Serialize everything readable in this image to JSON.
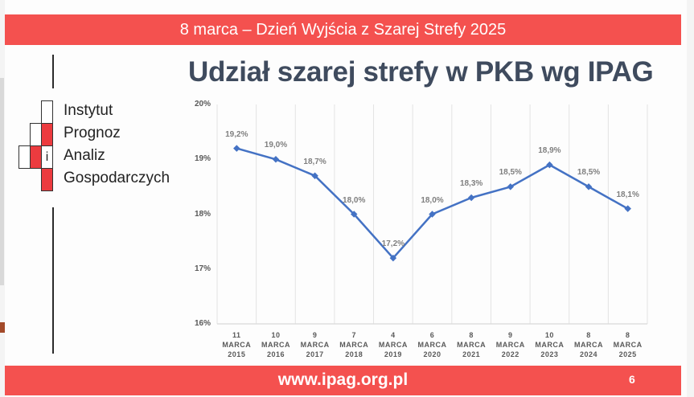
{
  "header": {
    "banner": "8 marca – Dzień Wyjścia z Szarej Strefy 2025"
  },
  "logo": {
    "lines": [
      "Instytut",
      "Prognoz",
      "Analiz",
      "Gospodarczych"
    ],
    "cell_letter": "i",
    "accent": "#ec3b3f"
  },
  "slide_title": "Udział szarej strefy w PKB wg IPAG",
  "footer": {
    "url": "www.ipag.org.pl",
    "page_number": "6"
  },
  "colors": {
    "bar": "#f4514f",
    "title": "#3f4b5e",
    "line": "#4472c4"
  },
  "chart_data": {
    "type": "line",
    "title": "Udział szarej strefy w PKB wg IPAG",
    "xlabel": "",
    "ylabel": "",
    "ylim": [
      16,
      20
    ],
    "yticks": [
      "16%",
      "17%",
      "18%",
      "19%",
      "20%"
    ],
    "grid": "vertical",
    "legend": "none",
    "categories": [
      [
        "11",
        "MARCA",
        "2015"
      ],
      [
        "10",
        "MARCA",
        "2016"
      ],
      [
        "9",
        "MARCA",
        "2017"
      ],
      [
        "7",
        "MARCA",
        "2018"
      ],
      [
        "4",
        "MARCA",
        "2019"
      ],
      [
        "6",
        "MARCA",
        "2020"
      ],
      [
        "8",
        "MARCA",
        "2021"
      ],
      [
        "9",
        "MARCA",
        "2022"
      ],
      [
        "10",
        "MARCA",
        "2023"
      ],
      [
        "8",
        "MARCA",
        "2024"
      ],
      [
        "8",
        "MARCA",
        "2025"
      ]
    ],
    "series": [
      {
        "name": "Udział szarej strefy w PKB",
        "values": [
          19.2,
          19.0,
          18.7,
          18.0,
          17.2,
          18.0,
          18.3,
          18.5,
          18.9,
          18.5,
          18.1
        ],
        "labels": [
          "19,2%",
          "19,0%",
          "18,7%",
          "18,0%",
          "17,2%",
          "18,0%",
          "18,3%",
          "18,5%",
          "18,9%",
          "18,5%",
          "18,1%"
        ]
      }
    ]
  }
}
